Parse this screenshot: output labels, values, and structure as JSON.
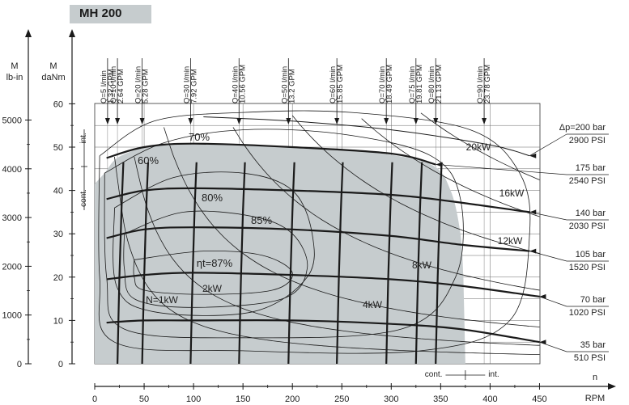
{
  "title": "MH 200",
  "chart_data": {
    "type": "line",
    "x_axis": {
      "name": "n",
      "unit": "RPM",
      "min": 0,
      "max": 450,
      "ticks": [
        0,
        50,
        100,
        150,
        200,
        250,
        300,
        350,
        400,
        450
      ]
    },
    "y_axis_left": {
      "name": "M",
      "unit": "daNm",
      "min": 0,
      "max": 60,
      "ticks": [
        0,
        10,
        20,
        30,
        40,
        50,
        60
      ]
    },
    "y_axis_outer": {
      "name": "M",
      "unit": "lb-in",
      "ticks": [
        0,
        1000,
        2000,
        3000,
        4000,
        5000
      ]
    },
    "axis_marks": {
      "int": "int.",
      "cont": "cont."
    },
    "shaded_region_label": "cont.",
    "flow_lines": [
      {
        "label": "Q=5 l/min 1.32 GPM",
        "rpm": 13
      },
      {
        "label": "Q=10 l/min 2.64 GPM",
        "rpm": 23
      },
      {
        "label": "Q=20 l/min 5.28 GPM",
        "rpm": 48
      },
      {
        "label": "Q=30 l/min 7.92 GPM",
        "rpm": 97
      },
      {
        "label": "Q=40 l/min 10.56 GPM",
        "rpm": 146
      },
      {
        "label": "Q=50 l/min 13.2 GPM",
        "rpm": 196
      },
      {
        "label": "Q=60 l/min 15.85 GPM",
        "rpm": 245
      },
      {
        "label": "Q=70 l/min 18.49 GPM",
        "rpm": 295
      },
      {
        "label": "Q=75 l/min 19.81 GPM",
        "rpm": 325
      },
      {
        "label": "Q=80 l/min 21.13 GPM",
        "rpm": 345
      },
      {
        "label": "Q=90 l/min 23.78 GPM",
        "rpm": 394
      }
    ],
    "pressure_lines": [
      {
        "bar": "Δp=200 bar",
        "psi": "2900 PSI",
        "torque_daNm": [
          [
            110,
            57
          ],
          [
            200,
            56
          ],
          [
            300,
            54
          ],
          [
            400,
            50.5
          ],
          [
            440,
            48
          ]
        ]
      },
      {
        "bar": "175 bar",
        "psi": "2540 PSI",
        "torque_daNm": [
          [
            12,
            47.5
          ],
          [
            50,
            50
          ],
          [
            100,
            50.8
          ],
          [
            200,
            50
          ],
          [
            300,
            48.5
          ],
          [
            345,
            46
          ]
        ]
      },
      {
        "bar": "140 bar",
        "psi": "2030 PSI",
        "torque_daNm": [
          [
            12,
            38
          ],
          [
            50,
            40
          ],
          [
            100,
            40.5
          ],
          [
            200,
            40
          ],
          [
            300,
            39
          ],
          [
            360,
            37.5
          ],
          [
            440,
            35
          ]
        ]
      },
      {
        "bar": "105 bar",
        "psi": "1520 PSI",
        "torque_daNm": [
          [
            12,
            29
          ],
          [
            50,
            31
          ],
          [
            100,
            31.5
          ],
          [
            200,
            31
          ],
          [
            300,
            29.5
          ],
          [
            370,
            27.5
          ],
          [
            440,
            26
          ]
        ]
      },
      {
        "bar": "70 bar",
        "psi": "1020 PSI",
        "torque_daNm": [
          [
            12,
            19.5
          ],
          [
            50,
            20.5
          ],
          [
            100,
            21
          ],
          [
            200,
            20.5
          ],
          [
            300,
            19.5
          ],
          [
            370,
            18
          ],
          [
            450,
            15.5
          ]
        ]
      },
      {
        "bar": "35 bar",
        "psi": "510 PSI",
        "torque_daNm": [
          [
            12,
            9.5
          ],
          [
            50,
            10
          ],
          [
            100,
            10
          ],
          [
            200,
            10
          ],
          [
            300,
            9.2
          ],
          [
            370,
            8
          ],
          [
            450,
            5
          ]
        ]
      }
    ],
    "power_curves_kW": [
      "N=1kW",
      "2kW",
      "4kW",
      "8kW",
      "12kW",
      "16kW",
      "20kW"
    ],
    "efficiency_contours": [
      "60%",
      "70%",
      "80%",
      "85%",
      "ηt=87%"
    ],
    "continuous_torque_limit_daNm": 43,
    "intermittent_torque_limit_daNm": 50,
    "continuous_speed_limit_rpm": 375,
    "intermittent_speed_limit_rpm": 450
  },
  "colors": {
    "shade": "#c6ccce",
    "line": "#1a1a1a"
  }
}
